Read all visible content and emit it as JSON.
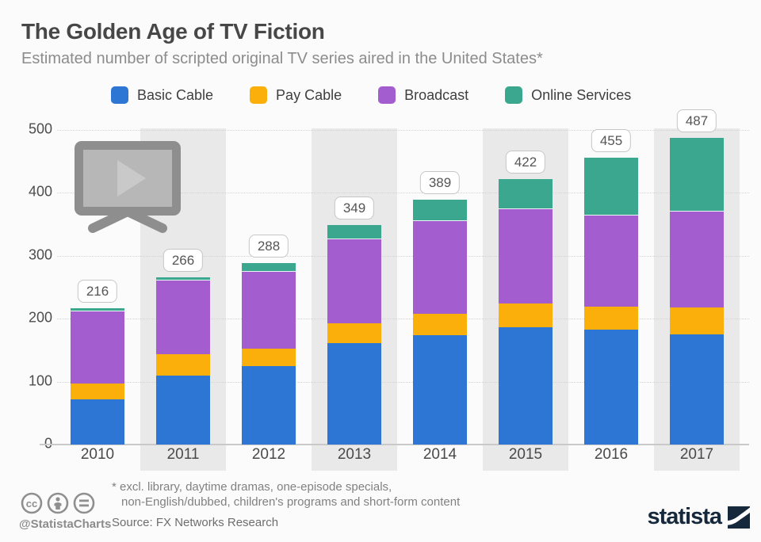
{
  "header": {
    "title": "The Golden Age of TV Fiction",
    "subtitle": "Estimated number of scripted original TV series aired in the United States*"
  },
  "chart_data": {
    "type": "bar",
    "stacked": true,
    "title": "The Golden Age of TV Fiction",
    "subtitle": "Estimated number of scripted original TV series aired in the United States*",
    "categories": [
      "2010",
      "2011",
      "2012",
      "2013",
      "2014",
      "2015",
      "2016",
      "2017"
    ],
    "series": [
      {
        "name": "Basic Cable",
        "color": "#2e76d3",
        "values": [
          72,
          110,
          125,
          161,
          174,
          186,
          182,
          175
        ]
      },
      {
        "name": "Pay Cable",
        "color": "#fbaf0a",
        "values": [
          25,
          33,
          27,
          32,
          34,
          38,
          37,
          42
        ]
      },
      {
        "name": "Broadcast",
        "color": "#a45dce",
        "values": [
          114,
          117,
          122,
          133,
          147,
          149,
          144,
          153
        ]
      },
      {
        "name": "Online Services",
        "color": "#3aa78e",
        "values": [
          5,
          6,
          14,
          23,
          34,
          49,
          92,
          117
        ]
      }
    ],
    "totals": [
      216,
      266,
      288,
      349,
      389,
      422,
      455,
      487
    ],
    "xlabel": "",
    "ylabel": "",
    "ylim": [
      0,
      500
    ],
    "yticks": [
      0,
      100,
      200,
      300,
      400,
      500
    ],
    "grid": "horizontal-dotted",
    "legend_position": "top",
    "column_stripes": "odd columns shaded light gray",
    "total_labels": "white rounded callouts above each bar"
  },
  "watermark": {
    "icon": "tv-play-icon"
  },
  "footer": {
    "license_icons": [
      "cc-icon",
      "attribution-person-icon",
      "equal-icon"
    ],
    "handle": "@StatistaCharts",
    "footnote_line1": "* excl. library, daytime dramas, one-episode specials,",
    "footnote_line2": "non-English/dubbed, children's programs and short-form content",
    "source": "Source: FX Networks Research",
    "brand": "statista"
  },
  "colors": {
    "basic_cable": "#2e76d3",
    "pay_cable": "#fbaf0a",
    "broadcast": "#a45dce",
    "online_services": "#3aa78e",
    "stripe": "#e9e9e9",
    "brand_navy": "#16283c"
  }
}
